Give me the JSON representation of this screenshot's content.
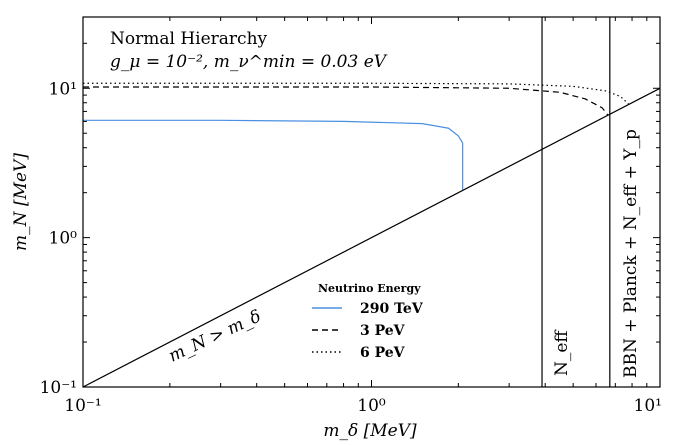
{
  "chart_data": {
    "type": "line",
    "xlabel": "m_δ [MeV]",
    "ylabel": "m_N [MeV]",
    "xscale": "log",
    "yscale": "log",
    "xlim": [
      0.1,
      10
    ],
    "ylim": [
      0.1,
      30
    ],
    "x_ticks": [
      {
        "value": 0.1,
        "label": "10⁻¹"
      },
      {
        "value": 1,
        "label": "10⁰"
      },
      {
        "value": 10,
        "label": "10¹"
      }
    ],
    "y_ticks": [
      {
        "value": 0.1,
        "label": "10⁻¹"
      },
      {
        "value": 1,
        "label": "10⁰"
      },
      {
        "value": 10,
        "label": "10¹"
      }
    ],
    "annotations": {
      "title": "Normal Hierarchy",
      "params": "g_μ = 10⁻², m_ν^min = 0.03 eV",
      "diagonal_label": "m_N > m_δ",
      "neff_label": "N_eff",
      "bbn_label": "BBN + Planck + N_eff + Y_p"
    },
    "legend": {
      "title": "Neutrino Energy",
      "position": "bottom-center",
      "entries": [
        {
          "label": "290 TeV",
          "style": "solid",
          "color": "#4a90e2"
        },
        {
          "label": "3 PeV",
          "style": "dashed",
          "color": "#000000"
        },
        {
          "label": "6 PeV",
          "style": "dotted",
          "color": "#000000"
        }
      ]
    },
    "series": [
      {
        "name": "290 TeV",
        "color": "#4a90e2",
        "style": "solid",
        "points": [
          [
            0.1,
            6.1
          ],
          [
            0.3,
            6.1
          ],
          [
            0.8,
            6.0
          ],
          [
            1.5,
            5.8
          ],
          [
            1.85,
            5.4
          ],
          [
            2.0,
            4.8
          ],
          [
            2.07,
            4.3
          ],
          [
            2.07,
            2.07
          ]
        ]
      },
      {
        "name": "3 PeV",
        "color": "#000000",
        "style": "dashed",
        "points": [
          [
            0.1,
            10.2
          ],
          [
            1.0,
            10.2
          ],
          [
            3.0,
            10.0
          ],
          [
            4.5,
            9.4
          ],
          [
            5.5,
            8.5
          ],
          [
            6.3,
            7.4
          ],
          [
            6.6,
            6.6
          ]
        ]
      },
      {
        "name": "6 PeV",
        "color": "#000000",
        "style": "dotted",
        "points": [
          [
            0.1,
            10.8
          ],
          [
            1.0,
            10.8
          ],
          [
            3.0,
            10.7
          ],
          [
            5.0,
            10.3
          ],
          [
            6.5,
            9.6
          ],
          [
            7.3,
            8.8
          ],
          [
            7.8,
            7.8
          ]
        ]
      },
      {
        "name": "",
        "color": "#000000",
        "style": "solid",
        "points": [
          [
            0.1,
            0.1
          ],
          [
            10,
            10
          ]
        ]
      }
    ],
    "vertical_lines": [
      {
        "name": "N_eff",
        "x": 3.9
      },
      {
        "name": "BBN + Planck + N_eff + Y_p",
        "x": 6.7
      }
    ]
  }
}
